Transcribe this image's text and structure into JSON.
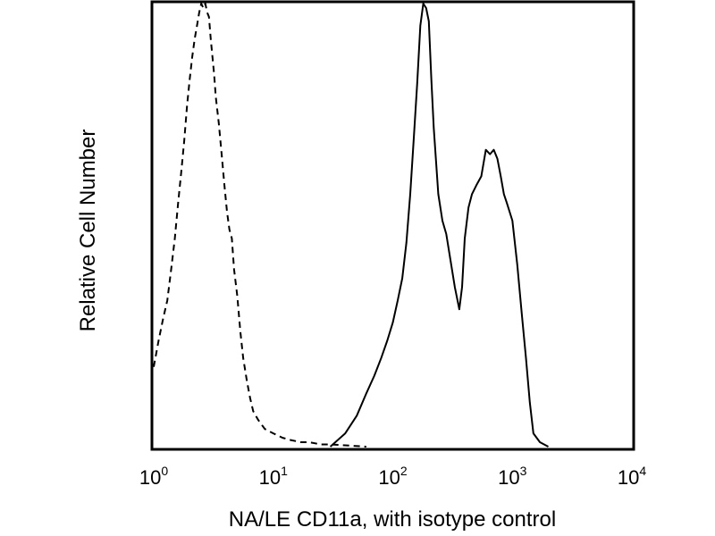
{
  "chart_data": {
    "type": "line",
    "xlabel": "NA/LE CD11a, with isotype control",
    "ylabel": "Relative Cell Number",
    "x_scale": "log",
    "xlim": [
      1,
      10000
    ],
    "ylim": [
      0,
      100
    ],
    "grid": false,
    "legend": "none",
    "x_ticks": [
      {
        "value": 1,
        "base": "10",
        "exp": "0"
      },
      {
        "value": 10,
        "base": "10",
        "exp": "1"
      },
      {
        "value": 100,
        "base": "10",
        "exp": "2"
      },
      {
        "value": 1000,
        "base": "10",
        "exp": "3"
      },
      {
        "value": 10000,
        "base": "10",
        "exp": "4"
      }
    ],
    "series": [
      {
        "style": "dashed",
        "color": "#000000",
        "x": [
          1.0,
          1.1,
          1.2,
          1.3,
          1.4,
          1.5,
          1.6,
          1.7,
          1.8,
          1.9,
          2.0,
          2.1,
          2.2,
          2.3,
          2.4,
          2.5,
          2.6,
          2.7,
          2.8,
          2.9,
          3.0,
          3.2,
          3.3,
          3.5,
          3.7,
          3.9,
          4.1,
          4.3,
          4.5,
          4.7,
          5.0,
          5.3,
          5.6,
          6.0,
          6.4,
          6.8,
          7.5,
          8.5,
          10,
          12,
          14,
          17,
          20,
          25,
          30,
          40,
          60
        ],
        "y": [
          18,
          24,
          29,
          33,
          40,
          47,
          55,
          62,
          69,
          77,
          83,
          88,
          92,
          95,
          98,
          100,
          99,
          100,
          98,
          97,
          92,
          84,
          79,
          73,
          66,
          59,
          53,
          49,
          47,
          40,
          34,
          26,
          20,
          15,
          11,
          8,
          6,
          4,
          3,
          2,
          1.5,
          1,
          1,
          0.5,
          0.5,
          0.3,
          0
        ]
      },
      {
        "style": "solid",
        "color": "#000000",
        "x": [
          30,
          40,
          50,
          60,
          70,
          80,
          90,
          100,
          110,
          120,
          130,
          140,
          150,
          160,
          170,
          180,
          190,
          200,
          210,
          220,
          240,
          260,
          280,
          300,
          330,
          360,
          380,
          400,
          430,
          460,
          500,
          550,
          600,
          650,
          700,
          750,
          800,
          850,
          900,
          1000,
          1100,
          1200,
          1300,
          1400,
          1500,
          1700,
          2000
        ],
        "y": [
          0,
          3,
          7,
          12,
          16,
          20,
          24,
          28,
          33,
          38,
          46,
          57,
          70,
          82,
          95,
          100,
          99,
          96,
          83,
          72,
          57,
          51,
          48,
          43,
          36,
          31,
          36,
          47,
          54,
          57,
          59,
          61,
          67,
          66,
          67,
          65,
          61,
          57,
          55,
          51,
          41,
          30,
          20,
          10,
          3,
          1,
          0
        ]
      }
    ]
  }
}
